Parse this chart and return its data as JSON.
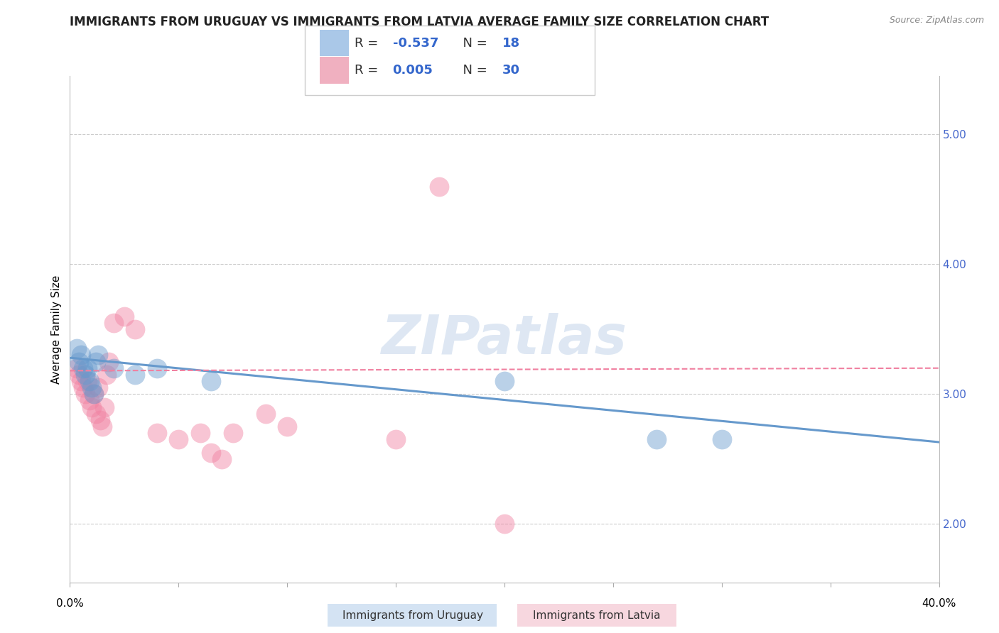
{
  "title": "IMMIGRANTS FROM URUGUAY VS IMMIGRANTS FROM LATVIA AVERAGE FAMILY SIZE CORRELATION CHART",
  "source": "Source: ZipAtlas.com",
  "ylabel": "Average Family Size",
  "ytick_right": [
    2.0,
    3.0,
    4.0,
    5.0
  ],
  "xlim": [
    0.0,
    0.4
  ],
  "ylim": [
    1.55,
    5.45
  ],
  "watermark": "ZIPatlas",
  "uruguay_points": [
    [
      0.003,
      3.35
    ],
    [
      0.004,
      3.25
    ],
    [
      0.005,
      3.3
    ],
    [
      0.006,
      3.2
    ],
    [
      0.007,
      3.15
    ],
    [
      0.008,
      3.2
    ],
    [
      0.009,
      3.1
    ],
    [
      0.01,
      3.05
    ],
    [
      0.011,
      3.0
    ],
    [
      0.012,
      3.25
    ],
    [
      0.013,
      3.3
    ],
    [
      0.02,
      3.2
    ],
    [
      0.03,
      3.15
    ],
    [
      0.04,
      3.2
    ],
    [
      0.065,
      3.1
    ],
    [
      0.2,
      3.1
    ],
    [
      0.27,
      2.65
    ],
    [
      0.3,
      2.65
    ]
  ],
  "latvia_points": [
    [
      0.003,
      3.2
    ],
    [
      0.004,
      3.15
    ],
    [
      0.005,
      3.1
    ],
    [
      0.006,
      3.05
    ],
    [
      0.007,
      3.0
    ],
    [
      0.008,
      3.1
    ],
    [
      0.009,
      2.95
    ],
    [
      0.01,
      2.9
    ],
    [
      0.011,
      3.0
    ],
    [
      0.012,
      2.85
    ],
    [
      0.013,
      3.05
    ],
    [
      0.014,
      2.8
    ],
    [
      0.015,
      2.75
    ],
    [
      0.016,
      2.9
    ],
    [
      0.017,
      3.15
    ],
    [
      0.018,
      3.25
    ],
    [
      0.02,
      3.55
    ],
    [
      0.025,
      3.6
    ],
    [
      0.03,
      3.5
    ],
    [
      0.04,
      2.7
    ],
    [
      0.05,
      2.65
    ],
    [
      0.06,
      2.7
    ],
    [
      0.065,
      2.55
    ],
    [
      0.07,
      2.5
    ],
    [
      0.075,
      2.7
    ],
    [
      0.09,
      2.85
    ],
    [
      0.1,
      2.75
    ],
    [
      0.15,
      2.65
    ],
    [
      0.17,
      4.6
    ],
    [
      0.2,
      2.0
    ]
  ],
  "uruguay_line": {
    "x": [
      0.0,
      0.4
    ],
    "y": [
      3.28,
      2.63
    ]
  },
  "latvia_line": {
    "x": [
      0.0,
      0.4
    ],
    "y": [
      3.18,
      3.2
    ]
  },
  "uruguay_color": "#6699cc",
  "latvia_color": "#f080a0",
  "bg_color": "#ffffff",
  "grid_color": "#cccccc",
  "title_fontsize": 12,
  "axis_fontsize": 11,
  "tick_fontsize": 11
}
